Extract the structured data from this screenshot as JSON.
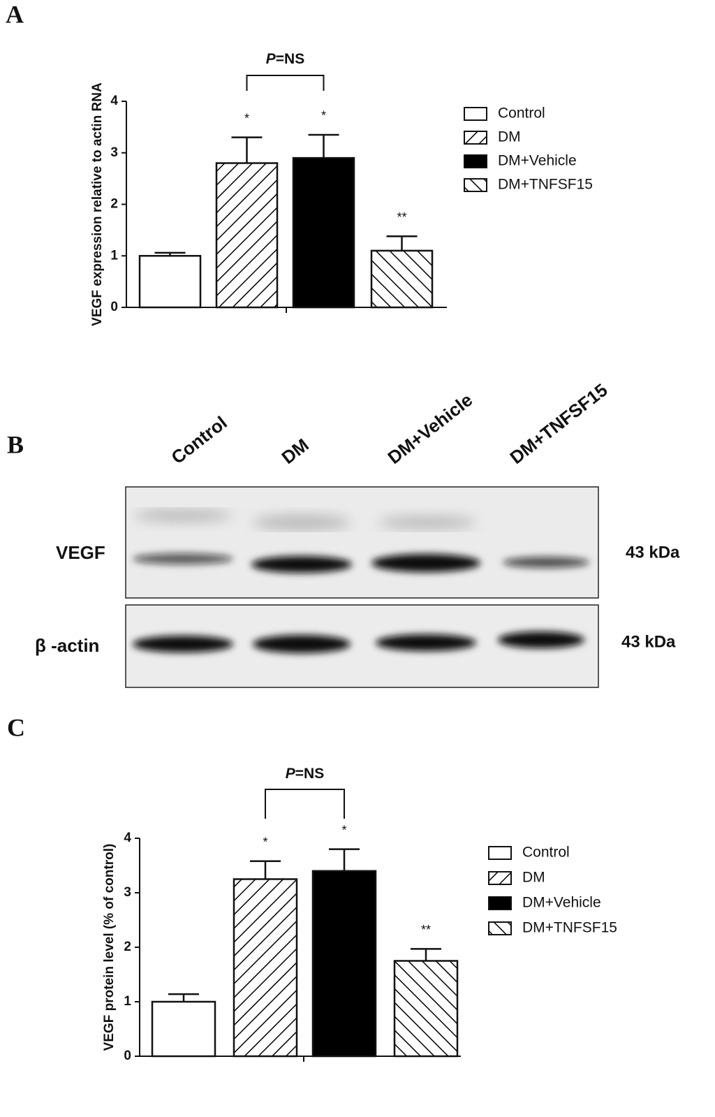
{
  "panel_labels": [
    "A",
    "B",
    "C"
  ],
  "chart_data": [
    {
      "type": "bar",
      "y_label": "VEGF expression relative to actin RNA",
      "categories": [
        null
      ],
      "bracket_label": "P=NS",
      "ylim": [
        0,
        4
      ],
      "yticks": [
        0,
        1,
        2,
        3,
        4
      ],
      "series": [
        {
          "name": "Control",
          "color": "#ffffff",
          "fill": "solid",
          "values": [
            1.0
          ],
          "errors": [
            0.06
          ]
        },
        {
          "name": "DM",
          "color": "#000000",
          "fill": "hatch-up",
          "values": [
            2.8
          ],
          "errors": [
            0.5
          ],
          "annotation": "*"
        },
        {
          "name": "DM+Vehicle",
          "color": "#000000",
          "fill": "solid",
          "values": [
            2.9
          ],
          "errors": [
            0.45
          ],
          "annotation": "*"
        },
        {
          "name": "DM+TNFSF15",
          "color": "#000000",
          "fill": "hatch-down",
          "values": [
            1.1
          ],
          "errors": [
            0.28
          ],
          "annotation": "**"
        }
      ]
    },
    {
      "type": "bar",
      "y_label": "VEGF protein level (% of control)",
      "categories": [
        null
      ],
      "bracket_label": "P=NS",
      "ylim": [
        0,
        4
      ],
      "yticks": [
        0,
        1,
        2,
        3,
        4
      ],
      "series": [
        {
          "name": "Control",
          "color": "#ffffff",
          "fill": "solid",
          "values": [
            1.0
          ],
          "errors": [
            0.14
          ]
        },
        {
          "name": "DM",
          "color": "#000000",
          "fill": "hatch-up",
          "values": [
            3.25
          ],
          "errors": [
            0.33
          ],
          "annotation": "*"
        },
        {
          "name": "DM+Vehicle",
          "color": "#000000",
          "fill": "solid",
          "values": [
            3.4
          ],
          "errors": [
            0.4
          ],
          "annotation": "*"
        },
        {
          "name": "DM+TNFSF15",
          "color": "#000000",
          "fill": "hatch-down",
          "values": [
            1.75
          ],
          "errors": [
            0.22
          ],
          "annotation": "**"
        }
      ]
    }
  ],
  "blot": {
    "lanes": [
      "Control",
      "DM",
      "DM+Vehicle",
      "DM+TNFSF15"
    ],
    "rows": [
      {
        "label": "VEGF",
        "size": "43 kDa"
      },
      {
        "label": "β -actin",
        "size": "43 kDa"
      }
    ]
  }
}
